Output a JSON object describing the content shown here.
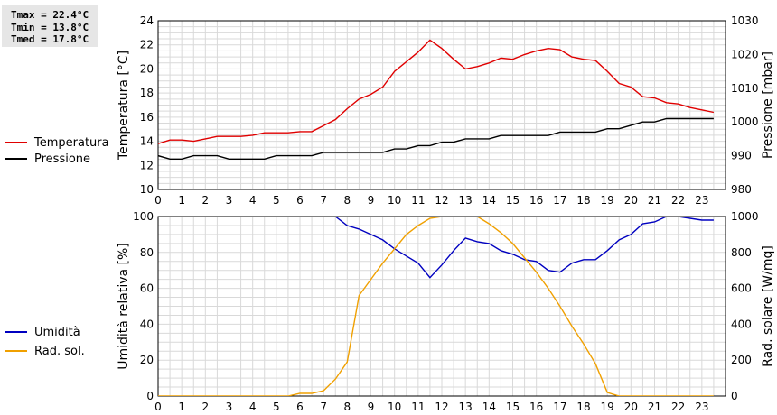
{
  "stats": {
    "tmax": "Tmax = 22.4°C",
    "tmin": "Tmin = 13.8°C",
    "tmed": "Tmed = 17.8°C"
  },
  "chart_data": [
    {
      "type": "line",
      "x_ticks": [
        "0",
        "1",
        "2",
        "3",
        "4",
        "5",
        "6",
        "7",
        "8",
        "9",
        "10",
        "11",
        "12",
        "13",
        "14",
        "15",
        "16",
        "17",
        "18",
        "19",
        "20",
        "21",
        "22",
        "23"
      ],
      "xlim": [
        0,
        24
      ],
      "ylabel_left": "Temperatura [°C]",
      "ylabel_right": "Pressione [mbar]",
      "ylim_left": [
        10,
        24
      ],
      "ylim_right": [
        980,
        1030
      ],
      "left_ticks": [
        "10",
        "12",
        "14",
        "16",
        "18",
        "20",
        "22",
        "24"
      ],
      "right_ticks": [
        "980",
        "990",
        "1000",
        "1010",
        "1020",
        "1030"
      ],
      "grid": true,
      "legend_position": "left",
      "series": [
        {
          "name": "Temperatura",
          "axis": "left",
          "color": "#e00000",
          "x": [
            0,
            0.5,
            1,
            1.5,
            2,
            2.5,
            3,
            3.5,
            4,
            4.5,
            5,
            5.5,
            6,
            6.5,
            7,
            7.5,
            8,
            8.5,
            9,
            9.5,
            10,
            10.5,
            11,
            11.5,
            12,
            12.5,
            13,
            13.5,
            14,
            14.5,
            15,
            15.5,
            16,
            16.5,
            17,
            17.5,
            18,
            18.5,
            19,
            19.5,
            20,
            20.5,
            21,
            21.5,
            22,
            22.5,
            23,
            23.5
          ],
          "y": [
            13.8,
            14.1,
            14.1,
            14.0,
            14.2,
            14.4,
            14.4,
            14.4,
            14.5,
            14.7,
            14.7,
            14.7,
            14.8,
            14.8,
            15.3,
            15.8,
            16.7,
            17.5,
            17.9,
            18.5,
            19.8,
            20.6,
            21.4,
            22.4,
            21.7,
            20.8,
            20.0,
            20.2,
            20.5,
            20.9,
            20.8,
            21.2,
            21.5,
            21.7,
            21.6,
            21.0,
            20.8,
            20.7,
            19.8,
            18.8,
            18.5,
            17.7,
            17.6,
            17.2,
            17.1,
            16.8,
            16.6,
            16.4
          ]
        },
        {
          "name": "Pressione",
          "axis": "right",
          "color": "#000000",
          "x": [
            0,
            0.5,
            1,
            1.5,
            2,
            2.5,
            3,
            3.5,
            4,
            4.5,
            5,
            5.5,
            6,
            6.5,
            7,
            7.5,
            8,
            8.5,
            9,
            9.5,
            10,
            10.5,
            11,
            11.5,
            12,
            12.5,
            13,
            13.5,
            14,
            14.5,
            15,
            15.5,
            16,
            16.5,
            17,
            17.5,
            18,
            18.5,
            19,
            19.5,
            20,
            20.5,
            21,
            21.5,
            22,
            22.5,
            23,
            23.5
          ],
          "y": [
            990,
            989,
            989,
            990,
            990,
            990,
            989,
            989,
            989,
            989,
            990,
            990,
            990,
            990,
            991,
            991,
            991,
            991,
            991,
            991,
            992,
            992,
            993,
            993,
            994,
            994,
            995,
            995,
            995,
            996,
            996,
            996,
            996,
            996,
            997,
            997,
            997,
            997,
            998,
            998,
            999,
            1000,
            1000,
            1001,
            1001,
            1001,
            1001,
            1001
          ]
        }
      ]
    },
    {
      "type": "line",
      "x_ticks": [
        "0",
        "1",
        "2",
        "3",
        "4",
        "5",
        "6",
        "7",
        "8",
        "9",
        "10",
        "11",
        "12",
        "13",
        "14",
        "15",
        "16",
        "17",
        "18",
        "19",
        "20",
        "21",
        "22",
        "23"
      ],
      "xlim": [
        0,
        24
      ],
      "ylabel_left": "Umidità relativa [%]",
      "ylabel_right": "Rad. solare [W/mq]",
      "ylim_left": [
        0,
        100
      ],
      "ylim_right": [
        0,
        1000
      ],
      "left_ticks": [
        "0",
        "20",
        "40",
        "60",
        "80",
        "100"
      ],
      "right_ticks": [
        "0",
        "200",
        "400",
        "600",
        "800",
        "1000"
      ],
      "grid": true,
      "legend_position": "left",
      "series": [
        {
          "name": "Umidità",
          "axis": "left",
          "color": "#0000c0",
          "x": [
            0,
            0.5,
            1,
            1.5,
            2,
            2.5,
            3,
            3.5,
            4,
            4.5,
            5,
            5.5,
            6,
            6.5,
            7,
            7.5,
            8,
            8.5,
            9,
            9.5,
            10,
            10.5,
            11,
            11.5,
            12,
            12.5,
            13,
            13.5,
            14,
            14.5,
            15,
            15.5,
            16,
            16.5,
            17,
            17.5,
            18,
            18.5,
            19,
            19.5,
            20,
            20.5,
            21,
            21.5,
            22,
            22.5,
            23,
            23.5
          ],
          "y": [
            100,
            100,
            100,
            100,
            100,
            100,
            100,
            100,
            100,
            100,
            100,
            100,
            100,
            100,
            100,
            100,
            95,
            93,
            90,
            87,
            82,
            78,
            74,
            66,
            73,
            81,
            88,
            86,
            85,
            81,
            79,
            76,
            75,
            70,
            69,
            74,
            76,
            76,
            81,
            87,
            90,
            96,
            97,
            100,
            100,
            99,
            98,
            98
          ]
        },
        {
          "name": "Rad. sol.",
          "axis": "right",
          "color": "#f0a000",
          "x": [
            0,
            0.5,
            1,
            1.5,
            2,
            2.5,
            3,
            3.5,
            4,
            4.5,
            5,
            5.5,
            6,
            6.5,
            7,
            7.5,
            8,
            8.5,
            9,
            9.5,
            10,
            10.5,
            11,
            11.5,
            12,
            12.5,
            13,
            13.5,
            14,
            14.5,
            15,
            15.5,
            16,
            16.5,
            17,
            17.5,
            18,
            18.5,
            19,
            19.5,
            20,
            20.5,
            21,
            21.5,
            22,
            22.5,
            23,
            23.5
          ],
          "y": [
            0,
            0,
            0,
            0,
            0,
            0,
            0,
            0,
            0,
            0,
            0,
            0,
            15,
            15,
            30,
            95,
            190,
            560,
            650,
            740,
            820,
            900,
            950,
            990,
            1000,
            1000,
            1000,
            1000,
            960,
            910,
            850,
            770,
            690,
            600,
            500,
            390,
            290,
            180,
            20,
            0,
            0,
            0,
            0,
            0,
            0,
            0,
            0,
            0
          ]
        }
      ]
    }
  ]
}
